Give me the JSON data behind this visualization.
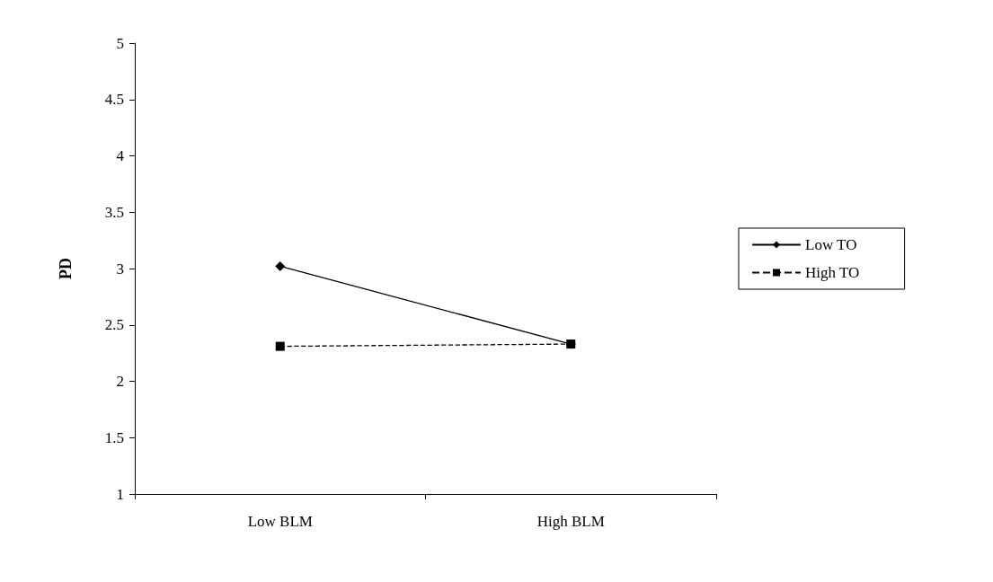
{
  "chart_data": {
    "type": "line",
    "ylabel": "PD",
    "categories": [
      "Low BLM",
      "High BLM"
    ],
    "series": [
      {
        "name": "Low TO",
        "color": "#000000",
        "values": [
          3.02,
          2.33
        ],
        "marker": "diamond",
        "line_style": "solid"
      },
      {
        "name": "High TO",
        "color": "#000000",
        "values": [
          2.31,
          2.33
        ],
        "marker": "square",
        "line_style": "dashed"
      }
    ],
    "ylim": [
      1,
      5
    ],
    "yticks": [
      1,
      1.5,
      2,
      2.5,
      3,
      3.5,
      4,
      4.5,
      5
    ],
    "grid": false,
    "legend": "right"
  }
}
